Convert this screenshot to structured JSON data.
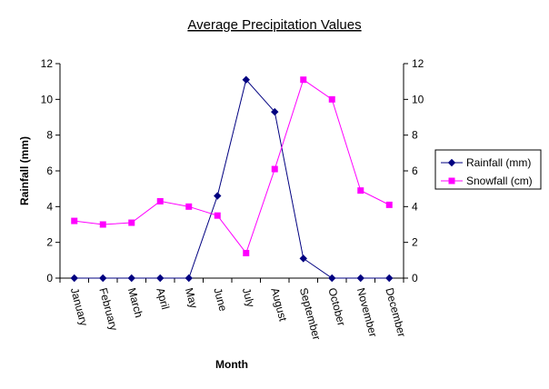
{
  "chart_data": {
    "type": "line",
    "title": "Average Precipitation Values",
    "xlabel": "Month",
    "ylabel": "Rainfall (mm)",
    "categories": [
      "January",
      "February",
      "March",
      "April",
      "May",
      "June",
      "July",
      "August",
      "September",
      "October",
      "November",
      "December"
    ],
    "ylim": [
      0,
      12
    ],
    "y2lim": [
      0,
      12
    ],
    "yticks": [
      0,
      2,
      4,
      6,
      8,
      10,
      12
    ],
    "grid": false,
    "legend_position": "right",
    "series": [
      {
        "name": "Rainfall (mm)",
        "marker": "diamond",
        "color": "#000080",
        "values": [
          0,
          0,
          0,
          0,
          0,
          4.6,
          11.1,
          9.3,
          1.1,
          0,
          0,
          0
        ]
      },
      {
        "name": "Snowfall (cm)",
        "marker": "square",
        "color": "#ff00ff",
        "values": [
          3.2,
          3.0,
          3.1,
          4.3,
          4.0,
          3.5,
          1.4,
          6.1,
          11.1,
          10.0,
          4.9,
          4.1
        ]
      }
    ]
  }
}
